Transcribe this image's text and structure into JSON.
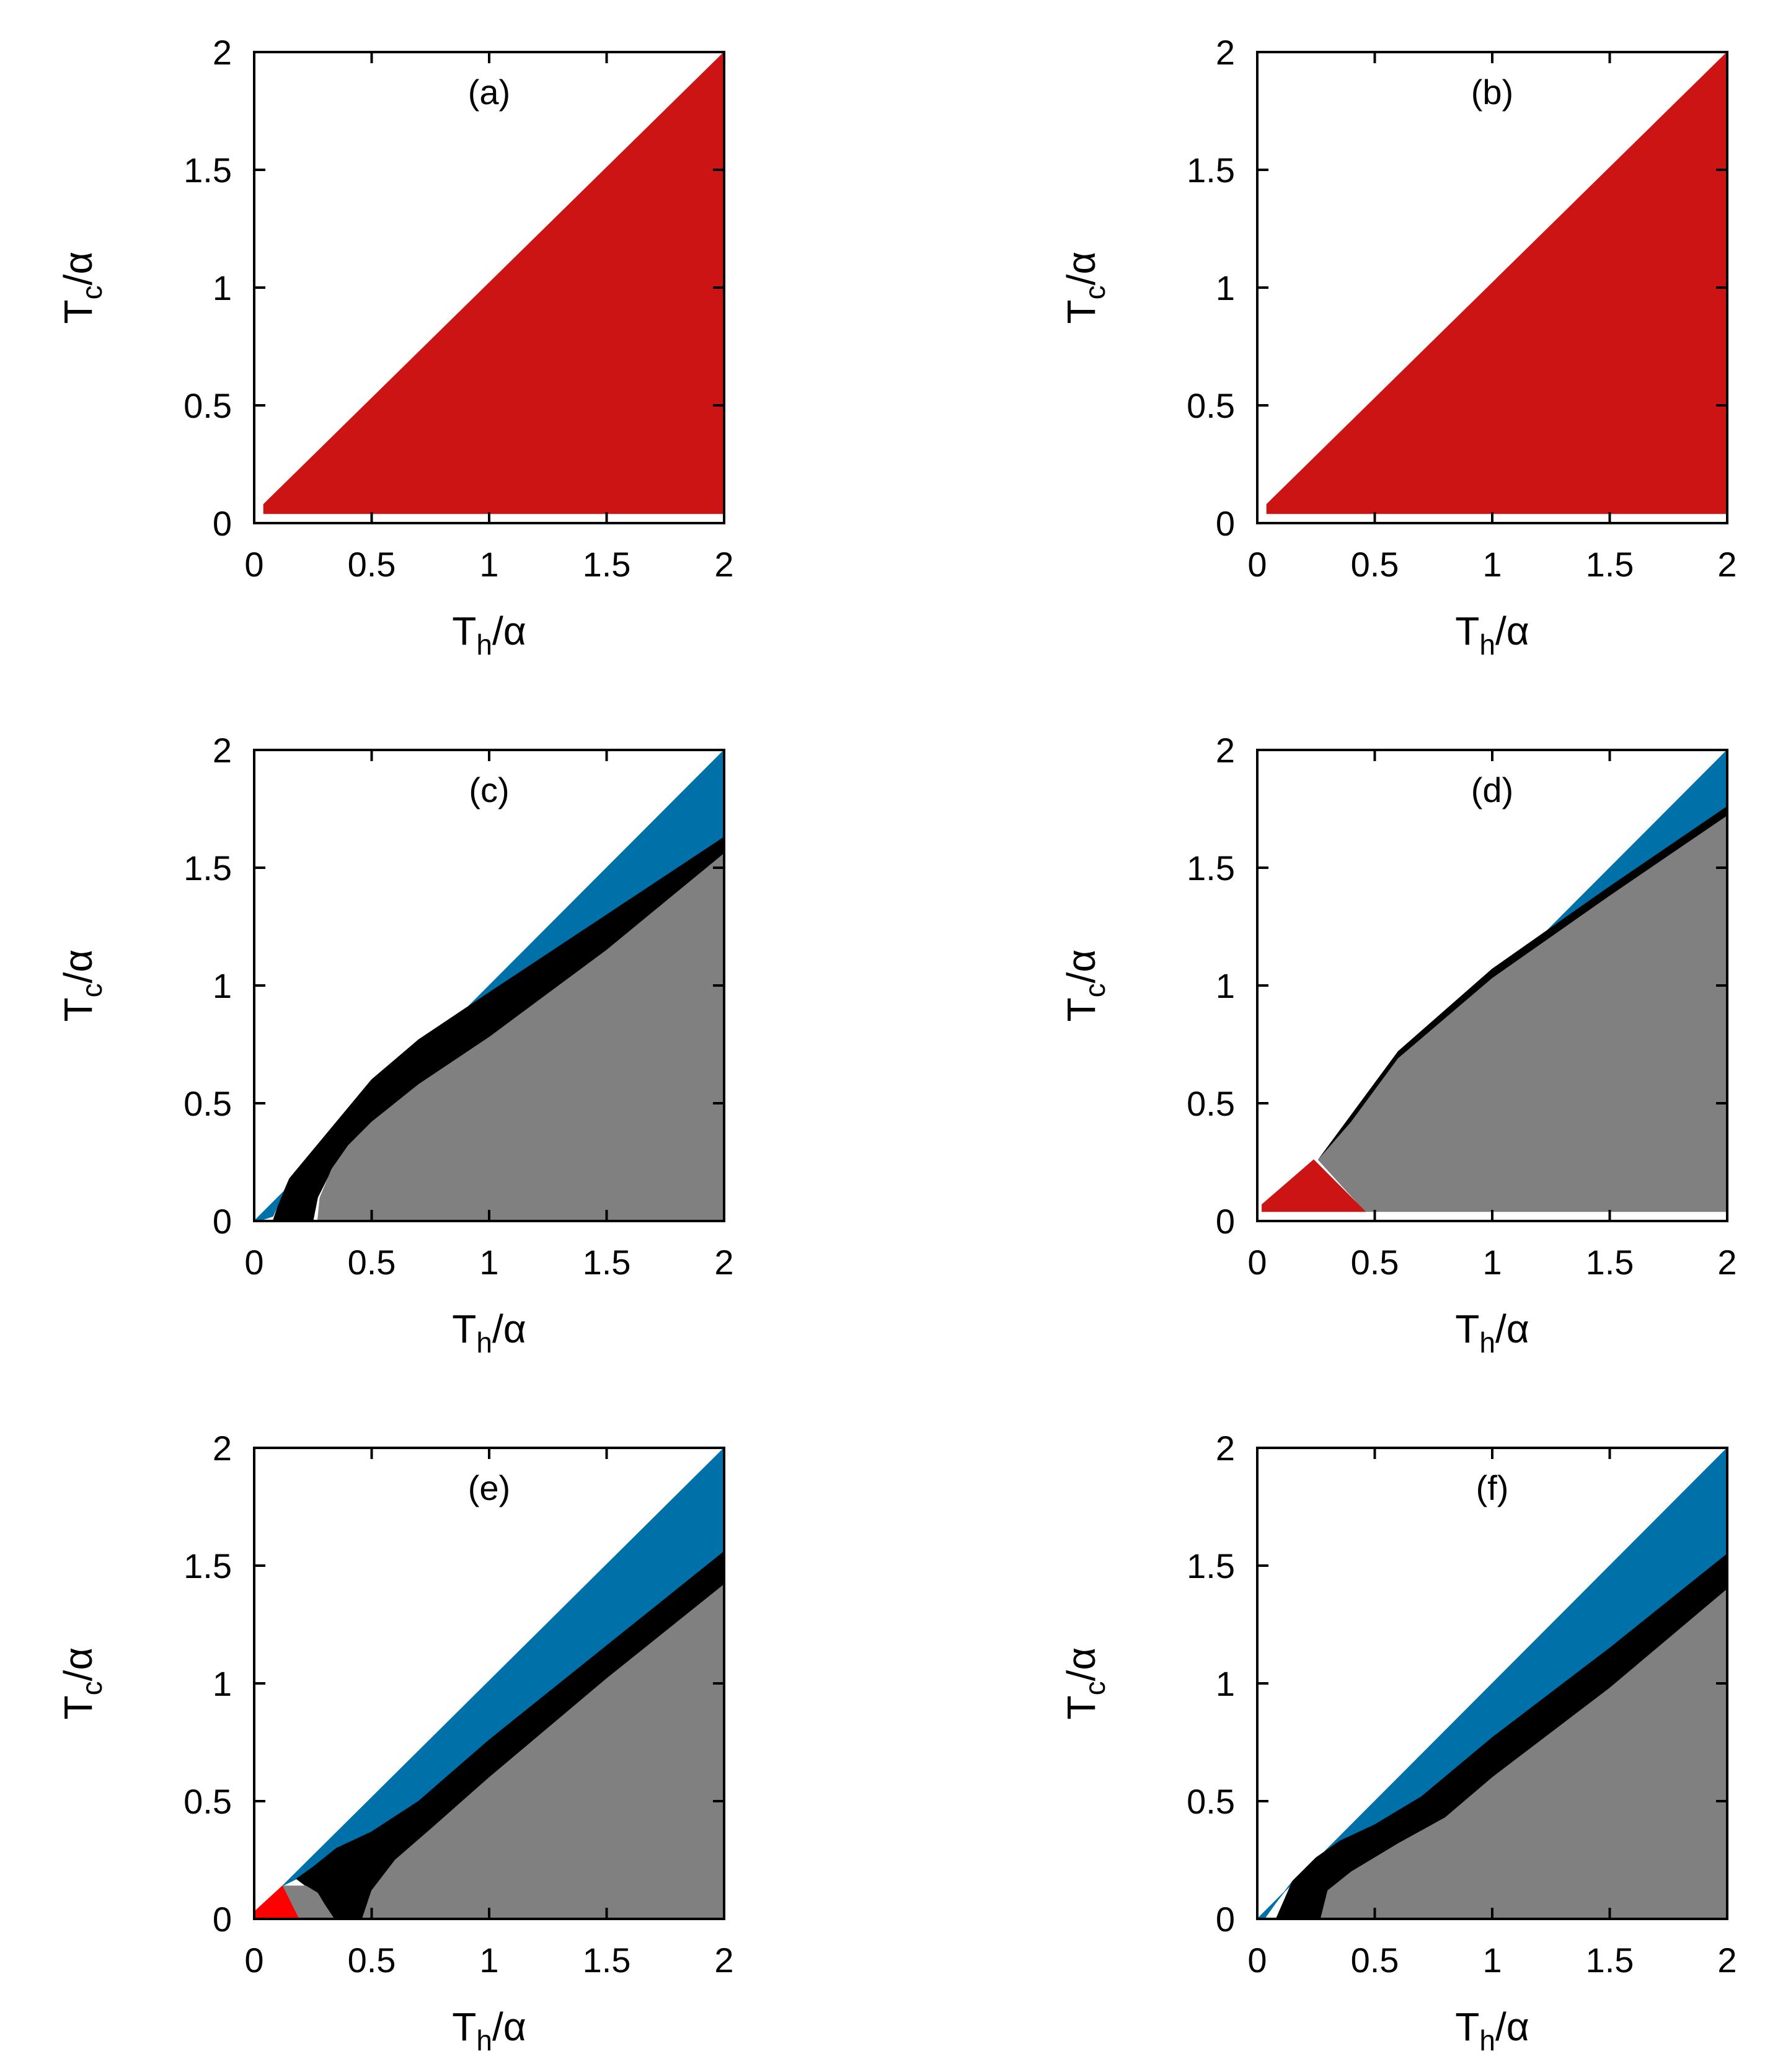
{
  "colors": {
    "dark_red": "#cc1414",
    "bright_red": "#ff0000",
    "blue": "#0070a8",
    "black": "#000000",
    "gray": "#808080",
    "white": "#ffffff"
  },
  "chart_data": [
    {
      "type": "heatmap",
      "panel_label": "(a)",
      "xlabel": {
        "main": "T",
        "sub": "h",
        "tail": "/α"
      },
      "ylabel": {
        "main": "T",
        "sub": "c",
        "tail": "/α"
      },
      "xlim": [
        0,
        2
      ],
      "ylim": [
        0,
        2
      ],
      "xticks": [
        "0",
        "0.5",
        "1",
        "1.5",
        "2"
      ],
      "yticks": [
        "0",
        "0.5",
        "1",
        "1.5",
        "2"
      ],
      "grid": false,
      "regions": [
        {
          "color": "dark_red",
          "points": [
            [
              0.04,
              0.04
            ],
            [
              0.04,
              0.08
            ],
            [
              2,
              2
            ],
            [
              2,
              0.04
            ]
          ]
        }
      ]
    },
    {
      "type": "heatmap",
      "panel_label": "(b)",
      "xlabel": {
        "main": "T",
        "sub": "h",
        "tail": "/α"
      },
      "ylabel": {
        "main": "T",
        "sub": "c",
        "tail": "/α"
      },
      "xlim": [
        0,
        2
      ],
      "ylim": [
        0,
        2
      ],
      "xticks": [
        "0",
        "0.5",
        "1",
        "1.5",
        "2"
      ],
      "yticks": [
        "0",
        "0.5",
        "1",
        "1.5",
        "2"
      ],
      "grid": false,
      "regions": [
        {
          "color": "dark_red",
          "points": [
            [
              0.04,
              0.04
            ],
            [
              0.04,
              0.08
            ],
            [
              2,
              2
            ],
            [
              2,
              0.04
            ]
          ]
        }
      ]
    },
    {
      "type": "heatmap",
      "panel_label": "(c)",
      "xlabel": {
        "main": "T",
        "sub": "h",
        "tail": "/α"
      },
      "ylabel": {
        "main": "T",
        "sub": "c",
        "tail": "/α"
      },
      "xlim": [
        0,
        2
      ],
      "ylim": [
        0,
        2
      ],
      "xticks": [
        "0",
        "0.5",
        "1",
        "1.5",
        "2"
      ],
      "yticks": [
        "0",
        "0.5",
        "1",
        "1.5",
        "2"
      ],
      "grid": false,
      "regions": [
        {
          "color": "blue",
          "points": [
            [
              0,
              0
            ],
            [
              2,
              2
            ],
            [
              2,
              1.63
            ],
            [
              1.5,
              1.3
            ],
            [
              1,
              0.97
            ],
            [
              0.7,
              0.77
            ],
            [
              0.5,
              0.6
            ],
            [
              0.35,
              0.42
            ],
            [
              0.25,
              0.3
            ],
            [
              0.15,
              0.18
            ],
            [
              0.08,
              0.02
            ],
            [
              0.02,
              0
            ]
          ]
        },
        {
          "color": "black",
          "points": [
            [
              0.08,
              0
            ],
            [
              0.25,
              0
            ],
            [
              0.27,
              0.1
            ],
            [
              0.33,
              0.22
            ],
            [
              0.4,
              0.32
            ],
            [
              0.5,
              0.42
            ],
            [
              0.7,
              0.58
            ],
            [
              1,
              0.78
            ],
            [
              1.5,
              1.15
            ],
            [
              2,
              1.56
            ],
            [
              2,
              1.63
            ],
            [
              1.5,
              1.3
            ],
            [
              1,
              0.97
            ],
            [
              0.7,
              0.77
            ],
            [
              0.5,
              0.6
            ],
            [
              0.35,
              0.42
            ],
            [
              0.25,
              0.3
            ],
            [
              0.15,
              0.18
            ],
            [
              0.1,
              0.06
            ]
          ]
        },
        {
          "color": "gray",
          "points": [
            [
              0.27,
              0
            ],
            [
              2,
              0
            ],
            [
              2,
              1.56
            ],
            [
              1.5,
              1.15
            ],
            [
              1,
              0.78
            ],
            [
              0.7,
              0.58
            ],
            [
              0.5,
              0.42
            ],
            [
              0.4,
              0.32
            ],
            [
              0.33,
              0.22
            ],
            [
              0.28,
              0.1
            ]
          ]
        }
      ]
    },
    {
      "type": "heatmap",
      "panel_label": "(d)",
      "xlabel": {
        "main": "T",
        "sub": "h",
        "tail": "/α"
      },
      "ylabel": {
        "main": "T",
        "sub": "c",
        "tail": "/α"
      },
      "xlim": [
        0,
        2
      ],
      "ylim": [
        0,
        2
      ],
      "xticks": [
        "0",
        "0.5",
        "1",
        "1.5",
        "2"
      ],
      "yticks": [
        "0",
        "0.5",
        "1",
        "1.5",
        "2"
      ],
      "grid": false,
      "regions": [
        {
          "color": "blue",
          "points": [
            [
              0.26,
              0.26
            ],
            [
              2,
              2
            ],
            [
              2,
              1.76
            ],
            [
              1.5,
              1.42
            ],
            [
              1,
              1.07
            ],
            [
              0.6,
              0.72
            ],
            [
              0.4,
              0.45
            ]
          ]
        },
        {
          "color": "black",
          "points": [
            [
              0.26,
              0.26
            ],
            [
              0.4,
              0.45
            ],
            [
              0.6,
              0.72
            ],
            [
              1,
              1.07
            ],
            [
              1.5,
              1.42
            ],
            [
              2,
              1.76
            ],
            [
              2,
              1.72
            ],
            [
              1.5,
              1.38
            ],
            [
              1,
              1.03
            ],
            [
              0.6,
              0.69
            ],
            [
              0.4,
              0.42
            ]
          ]
        },
        {
          "color": "gray",
          "points": [
            [
              0.26,
              0.26
            ],
            [
              0.4,
              0.42
            ],
            [
              0.6,
              0.69
            ],
            [
              1,
              1.03
            ],
            [
              1.5,
              1.38
            ],
            [
              2,
              1.72
            ],
            [
              2,
              0.04
            ],
            [
              0.46,
              0.04
            ]
          ]
        },
        {
          "color": "dark_red",
          "points": [
            [
              0.02,
              0.04
            ],
            [
              0.02,
              0.07
            ],
            [
              0.24,
              0.26
            ],
            [
              0.46,
              0.04
            ]
          ]
        }
      ]
    },
    {
      "type": "heatmap",
      "panel_label": "(e)",
      "xlabel": {
        "main": "T",
        "sub": "h",
        "tail": "/α"
      },
      "ylabel": {
        "main": "T",
        "sub": "c",
        "tail": "/α"
      },
      "xlim": [
        0,
        2
      ],
      "ylim": [
        0,
        2
      ],
      "xticks": [
        "0",
        "0.5",
        "1",
        "1.5",
        "2"
      ],
      "yticks": [
        "0",
        "0.5",
        "1",
        "1.5",
        "2"
      ],
      "grid": false,
      "regions": [
        {
          "color": "blue",
          "points": [
            [
              0.12,
              0.14
            ],
            [
              2,
              2
            ],
            [
              2,
              1.56
            ],
            [
              1.5,
              1.16
            ],
            [
              1,
              0.76
            ],
            [
              0.7,
              0.5
            ],
            [
              0.5,
              0.37
            ],
            [
              0.35,
              0.3
            ],
            [
              0.25,
              0.22
            ],
            [
              0.18,
              0.17
            ]
          ]
        },
        {
          "color": "black",
          "points": [
            [
              0.18,
              0.17
            ],
            [
              0.25,
              0.22
            ],
            [
              0.35,
              0.3
            ],
            [
              0.5,
              0.37
            ],
            [
              0.7,
              0.5
            ],
            [
              1,
              0.76
            ],
            [
              1.5,
              1.16
            ],
            [
              2,
              1.56
            ],
            [
              2,
              1.42
            ],
            [
              1.5,
              1.02
            ],
            [
              1,
              0.6
            ],
            [
              0.75,
              0.38
            ],
            [
              0.6,
              0.25
            ],
            [
              0.5,
              0.12
            ],
            [
              0.46,
              0
            ],
            [
              0.34,
              0
            ],
            [
              0.3,
              0.06
            ],
            [
              0.27,
              0.11
            ],
            [
              0.22,
              0.14
            ]
          ]
        },
        {
          "color": "gray",
          "points": [
            [
              0.12,
              0.14
            ],
            [
              0.22,
              0.14
            ],
            [
              0.27,
              0.11
            ],
            [
              0.3,
              0.06
            ],
            [
              0.34,
              0
            ],
            [
              0.19,
              0
            ],
            [
              0.14,
              0.08
            ]
          ]
        },
        {
          "color": "gray",
          "points": [
            [
              0.46,
              0
            ],
            [
              2,
              0
            ],
            [
              2,
              1.42
            ],
            [
              1.5,
              1.02
            ],
            [
              1,
              0.6
            ],
            [
              0.75,
              0.38
            ],
            [
              0.6,
              0.25
            ],
            [
              0.5,
              0.12
            ]
          ]
        },
        {
          "color": "bright_red",
          "points": [
            [
              0,
              0
            ],
            [
              0,
              0.03
            ],
            [
              0.12,
              0.14
            ],
            [
              0.19,
              0
            ]
          ]
        }
      ]
    },
    {
      "type": "heatmap",
      "panel_label": "(f)",
      "xlabel": {
        "main": "T",
        "sub": "h",
        "tail": "/α"
      },
      "ylabel": {
        "main": "T",
        "sub": "c",
        "tail": "/α"
      },
      "xlim": [
        0,
        2
      ],
      "ylim": [
        0,
        2
      ],
      "xticks": [
        "0",
        "0.5",
        "1",
        "1.5",
        "2"
      ],
      "yticks": [
        "0",
        "0.5",
        "1",
        "1.5",
        "2"
      ],
      "grid": false,
      "regions": [
        {
          "color": "blue",
          "points": [
            [
              0,
              0
            ],
            [
              2,
              2
            ],
            [
              2,
              1.55
            ],
            [
              1.5,
              1.15
            ],
            [
              1,
              0.77
            ],
            [
              0.7,
              0.52
            ],
            [
              0.5,
              0.4
            ],
            [
              0.35,
              0.33
            ],
            [
              0.25,
              0.26
            ],
            [
              0.15,
              0.16
            ],
            [
              0.08,
              0.07
            ],
            [
              0.03,
              0
            ]
          ]
        },
        {
          "color": "black",
          "points": [
            [
              0.08,
              0
            ],
            [
              0.27,
              0
            ],
            [
              0.3,
              0.12
            ],
            [
              0.4,
              0.2
            ],
            [
              0.6,
              0.32
            ],
            [
              0.8,
              0.43
            ],
            [
              1,
              0.6
            ],
            [
              1.5,
              0.98
            ],
            [
              2,
              1.4
            ],
            [
              2,
              1.55
            ],
            [
              1.5,
              1.15
            ],
            [
              1,
              0.77
            ],
            [
              0.7,
              0.52
            ],
            [
              0.5,
              0.4
            ],
            [
              0.35,
              0.33
            ],
            [
              0.25,
              0.26
            ],
            [
              0.15,
              0.16
            ]
          ]
        },
        {
          "color": "gray",
          "points": [
            [
              0.27,
              0
            ],
            [
              2,
              0
            ],
            [
              2,
              1.4
            ],
            [
              1.5,
              0.98
            ],
            [
              1,
              0.6
            ],
            [
              0.8,
              0.43
            ],
            [
              0.6,
              0.32
            ],
            [
              0.4,
              0.2
            ],
            [
              0.3,
              0.12
            ]
          ]
        }
      ]
    }
  ]
}
